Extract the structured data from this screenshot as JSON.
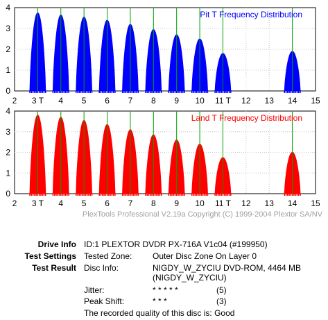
{
  "copyright": "PlexTools Professional V2.19a Copyright (C) 1999-2004 Plextor SA/NV",
  "chart_data": [
    {
      "type": "area",
      "title": "Pit T Frequency Distribution",
      "color": "#0000ff",
      "guide_color": "#00a000",
      "grid": true,
      "title_position": "top-right",
      "xlim": [
        2,
        15
      ],
      "ylim": [
        0,
        4
      ],
      "x_ticks": [
        "2",
        "3 T",
        "4",
        "5",
        "6",
        "7",
        "8",
        "9",
        "10",
        "11 T",
        "12",
        "13",
        "14",
        "15"
      ],
      "y_ticks": [
        "0",
        "1",
        "2",
        "3",
        "4"
      ],
      "t_markers": [
        3,
        4,
        5,
        6,
        7,
        8,
        9,
        10,
        11,
        14
      ],
      "peaks": [
        {
          "t": 3,
          "height": 3.75
        },
        {
          "t": 4,
          "height": 3.65
        },
        {
          "t": 5,
          "height": 3.55
        },
        {
          "t": 6,
          "height": 3.4
        },
        {
          "t": 7,
          "height": 3.2
        },
        {
          "t": 8,
          "height": 2.95
        },
        {
          "t": 9,
          "height": 2.7
        },
        {
          "t": 10,
          "height": 2.5
        },
        {
          "t": 11,
          "height": 1.8
        },
        {
          "t": 14,
          "height": 1.9
        }
      ]
    },
    {
      "type": "area",
      "title": "Land T Frequency Distribution",
      "color": "#ff0000",
      "guide_color": "#00a000",
      "grid": true,
      "title_position": "top-right",
      "xlim": [
        2,
        15
      ],
      "ylim": [
        0,
        4
      ],
      "x_ticks": [
        "2",
        "3 T",
        "4",
        "5",
        "6",
        "7",
        "8",
        "9",
        "10",
        "11 T",
        "12",
        "13",
        "14",
        "15"
      ],
      "y_ticks": [
        "0",
        "1",
        "2",
        "3",
        "4"
      ],
      "t_markers": [
        3,
        4,
        5,
        6,
        7,
        8,
        9,
        10,
        11,
        14
      ],
      "peaks": [
        {
          "t": 3,
          "height": 3.8
        },
        {
          "t": 4,
          "height": 3.7
        },
        {
          "t": 5,
          "height": 3.55
        },
        {
          "t": 6,
          "height": 3.35
        },
        {
          "t": 7,
          "height": 3.1
        },
        {
          "t": 8,
          "height": 2.85
        },
        {
          "t": 9,
          "height": 2.6
        },
        {
          "t": 10,
          "height": 2.4
        },
        {
          "t": 11,
          "height": 1.75
        },
        {
          "t": 14,
          "height": 2.0
        }
      ]
    }
  ],
  "info": {
    "drive_label": "Drive Info",
    "drive_value": "ID:1 PLEXTOR DVDR PX-716A V1c04 (#199950)",
    "settings_label": "Test Settings",
    "tested_zone_label": "Tested Zone:",
    "tested_zone_value": "Outer Disc Zone On Layer 0",
    "result_label": "Test Result",
    "disc_info_label": "Disc Info:",
    "disc_info_line1": "NIGDY_W_ZYCIU DVD-ROM, 4464 MB",
    "disc_info_line2": "(NIGDY_W_ZYCIU)",
    "jitter_label": "Jitter:",
    "jitter_stars": "* * * * *",
    "jitter_score": "(5)",
    "peak_shift_label": "Peak Shift:",
    "peak_shift_stars": "* * *",
    "peak_shift_score": "(3)",
    "quality_text": "The recorded quality of this disc is: Good"
  }
}
